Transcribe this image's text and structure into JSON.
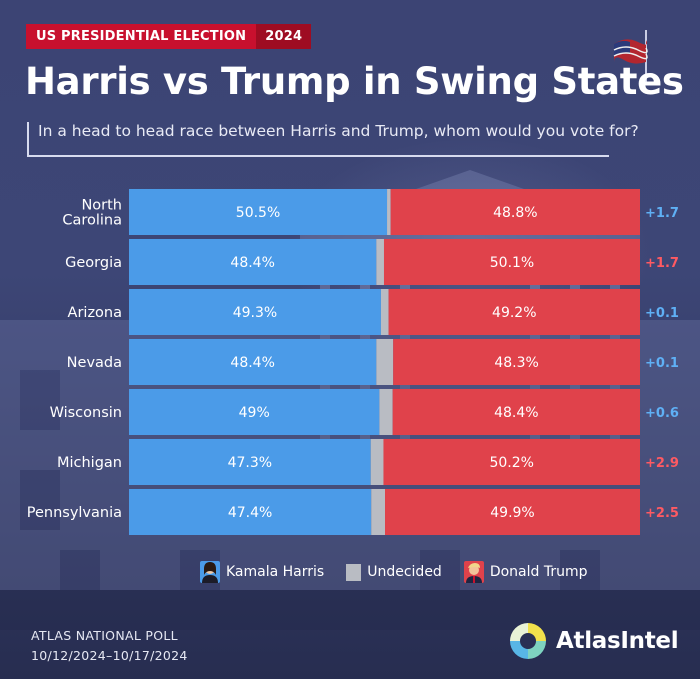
{
  "header": {
    "badge_label": "US PRESIDENTIAL ELECTION",
    "badge_year": "2024",
    "title": "Harris vs Trump in Swing States",
    "question": "In a head to head race between Harris and Trump, whom would you vote for?"
  },
  "chart_data": {
    "type": "bar",
    "orientation": "horizontal-stacked",
    "title": "Harris vs Trump in Swing States",
    "subtitle": "In a head to head race between Harris and Trump, whom would you vote for?",
    "categories": [
      "North Carolina",
      "Georgia",
      "Arizona",
      "Nevada",
      "Wisconsin",
      "Michigan",
      "Pennsylvania"
    ],
    "category_lines": [
      [
        "North",
        "Carolina"
      ],
      [
        "Georgia"
      ],
      [
        "Arizona"
      ],
      [
        "Nevada"
      ],
      [
        "Wisconsin"
      ],
      [
        "Michigan"
      ],
      [
        "Pennsylvania"
      ]
    ],
    "series": [
      {
        "name": "Kamala Harris",
        "values": [
          50.5,
          48.4,
          49.3,
          48.4,
          49,
          47.3,
          47.4
        ],
        "labels": [
          "50.5%",
          "48.4%",
          "49.3%",
          "48.4%",
          "49%",
          "47.3%",
          "47.4%"
        ],
        "color": "#4b9be8"
      },
      {
        "name": "Undecided",
        "values": [
          0.7,
          1.5,
          1.5,
          3.3,
          2.6,
          2.5,
          2.7
        ],
        "color": "#b9bcc3"
      },
      {
        "name": "Donald Trump",
        "values": [
          48.8,
          50.1,
          49.2,
          48.3,
          48.4,
          50.2,
          49.9
        ],
        "labels": [
          "48.8%",
          "50.1%",
          "49.2%",
          "48.3%",
          "48.4%",
          "50.2%",
          "49.9%"
        ],
        "color": "#e0424b"
      }
    ],
    "margins": [
      "+1.7",
      "+1.7",
      "+0.1",
      "+0.1",
      "+0.6",
      "+2.9",
      "+2.5"
    ],
    "margin_leader": [
      "Harris",
      "Trump",
      "Harris",
      "Harris",
      "Harris",
      "Trump",
      "Trump"
    ],
    "margin_colors": {
      "Harris": "#5fb0f5",
      "Trump": "#ff5a62"
    },
    "xlim": [
      0,
      100
    ],
    "legend_position": "bottom"
  },
  "legend": {
    "harris": "Kamala Harris",
    "undecided": "Undecided",
    "trump": "Donald Trump"
  },
  "footer": {
    "poll_name": "ATLAS NATIONAL POLL",
    "dates": "10/12/2024–10/17/2024",
    "brand": "AtlasIntel"
  },
  "colors": {
    "background": "#3b4372",
    "harris": "#4b9be8",
    "trump": "#e0424b",
    "undecided": "#b9bcc3",
    "badge_red": "#c8102e"
  }
}
